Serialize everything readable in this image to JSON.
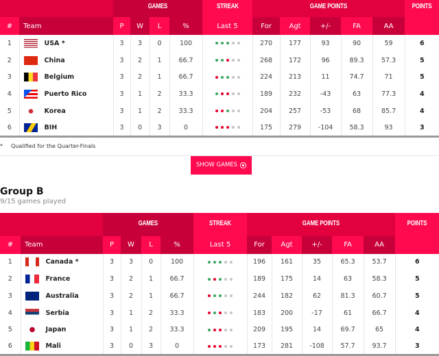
{
  "headers": {
    "games": "GAMES",
    "streak": "STREAK",
    "game_points": "GAME POINTS",
    "points": "POINTS",
    "cols": [
      "#",
      "Team",
      "P",
      "W",
      "L",
      "%",
      "Last 5",
      "For",
      "Agt",
      "+/-",
      "FA",
      "AA",
      ""
    ]
  },
  "colors": {
    "win": "#3aa55d",
    "loss": "#e4002b",
    "pending": "#c4c4c4",
    "accent": "#ff0a4f"
  },
  "groupA": {
    "rows": [
      {
        "rank": "1",
        "team": "USA *",
        "flag": "usa",
        "p": "3",
        "w": "3",
        "l": "0",
        "pct": "100",
        "streak": "WWW",
        "for": "270",
        "agt": "177",
        "diff": "93",
        "fa": "90",
        "aa": "59",
        "pts": "6"
      },
      {
        "rank": "2",
        "team": "China",
        "flag": "china",
        "p": "3",
        "w": "2",
        "l": "1",
        "pct": "66.7",
        "streak": "WWL",
        "for": "268",
        "agt": "172",
        "diff": "96",
        "fa": "89.3",
        "aa": "57.3",
        "pts": "5"
      },
      {
        "rank": "3",
        "team": "Belgium",
        "flag": "belgium",
        "p": "3",
        "w": "2",
        "l": "1",
        "pct": "66.7",
        "streak": "LWW",
        "for": "224",
        "agt": "213",
        "diff": "11",
        "fa": "74.7",
        "aa": "71",
        "pts": "5"
      },
      {
        "rank": "4",
        "team": "Puerto Rico",
        "flag": "puerto-rico",
        "p": "3",
        "w": "1",
        "l": "2",
        "pct": "33.3",
        "streak": "WLL",
        "for": "189",
        "agt": "232",
        "diff": "-43",
        "fa": "63",
        "aa": "77.3",
        "pts": "4"
      },
      {
        "rank": "5",
        "team": "Korea",
        "flag": "korea",
        "p": "3",
        "w": "1",
        "l": "2",
        "pct": "33.3",
        "streak": "LLW",
        "for": "204",
        "agt": "257",
        "diff": "-53",
        "fa": "68",
        "aa": "85.7",
        "pts": "4"
      },
      {
        "rank": "6",
        "team": "BIH",
        "flag": "bih",
        "p": "3",
        "w": "0",
        "l": "3",
        "pct": "0",
        "streak": "LLL",
        "for": "175",
        "agt": "279",
        "diff": "-104",
        "fa": "58.3",
        "aa": "93",
        "pts": "3"
      }
    ],
    "footnote_mark": "*",
    "footnote": "Qualified for the Quarter-Finals",
    "show_games": "SHOW GAMES"
  },
  "groupB": {
    "title": "Group B",
    "subtitle": "9/15 games played",
    "rows": [
      {
        "rank": "1",
        "team": "Canada *",
        "flag": "canada",
        "p": "3",
        "w": "3",
        "l": "0",
        "pct": "100",
        "streak": "WWW",
        "for": "196",
        "agt": "161",
        "diff": "35",
        "fa": "65.3",
        "aa": "53.7",
        "pts": "6"
      },
      {
        "rank": "2",
        "team": "France",
        "flag": "france",
        "p": "3",
        "w": "2",
        "l": "1",
        "pct": "66.7",
        "streak": "WLW",
        "for": "189",
        "agt": "175",
        "diff": "14",
        "fa": "63",
        "aa": "58.3",
        "pts": "5"
      },
      {
        "rank": "3",
        "team": "Australia",
        "flag": "australia",
        "p": "3",
        "w": "2",
        "l": "1",
        "pct": "66.7",
        "streak": "LWW",
        "for": "244",
        "agt": "182",
        "diff": "62",
        "fa": "81.3",
        "aa": "60.7",
        "pts": "5"
      },
      {
        "rank": "4",
        "team": "Serbia",
        "flag": "serbia",
        "p": "3",
        "w": "1",
        "l": "2",
        "pct": "33.3",
        "streak": "LWL",
        "for": "183",
        "agt": "200",
        "diff": "-17",
        "fa": "61",
        "aa": "66.7",
        "pts": "4"
      },
      {
        "rank": "5",
        "team": "Japan",
        "flag": "japan",
        "p": "3",
        "w": "1",
        "l": "2",
        "pct": "33.3",
        "streak": "WLL",
        "for": "209",
        "agt": "195",
        "diff": "14",
        "fa": "69.7",
        "aa": "65",
        "pts": "4"
      },
      {
        "rank": "6",
        "team": "Mali",
        "flag": "mali",
        "p": "3",
        "w": "0",
        "l": "3",
        "pct": "0",
        "streak": "LLL",
        "for": "173",
        "agt": "281",
        "diff": "-108",
        "fa": "57.7",
        "aa": "93.7",
        "pts": "3"
      }
    ]
  }
}
